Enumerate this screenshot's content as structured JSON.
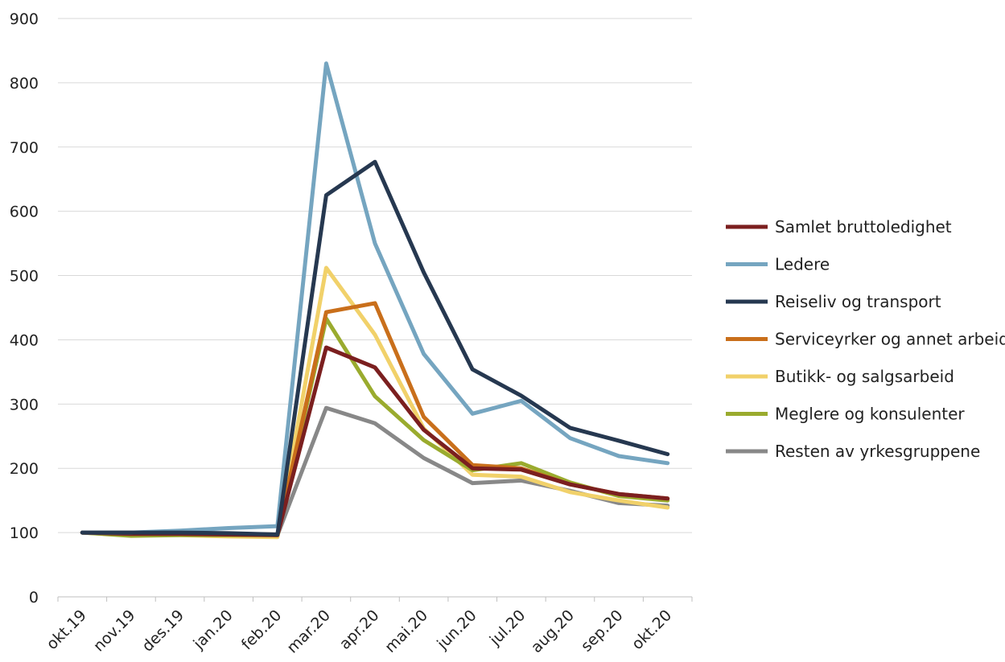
{
  "chart_data": {
    "type": "line",
    "title": "",
    "xlabel": "",
    "ylabel": "",
    "ylim": [
      0,
      900
    ],
    "yticks": [
      0,
      100,
      200,
      300,
      400,
      500,
      600,
      700,
      800,
      900
    ],
    "grid": "horizontal",
    "legend": "right",
    "categories": [
      "okt.19",
      "nov.19",
      "des.19",
      "jan.20",
      "feb.20",
      "mar.20",
      "apr.20",
      "mai.20",
      "jun.20",
      "jul.20",
      "aug.20",
      "sep.20",
      "okt.20"
    ],
    "series": [
      {
        "name": "Samlet bruttoledighet",
        "color": "#7b1f1f",
        "values": [
          100,
          98,
          98,
          97,
          96,
          388,
          357,
          260,
          200,
          198,
          175,
          160,
          153
        ]
      },
      {
        "name": "Ledere",
        "color": "#75a5c0",
        "values": [
          100,
          100,
          103,
          107,
          110,
          830,
          550,
          378,
          285,
          305,
          247,
          219,
          208
        ]
      },
      {
        "name": "Reiseliv og transport",
        "color": "#263850",
        "values": [
          100,
          100,
          100,
          99,
          97,
          625,
          677,
          505,
          354,
          313,
          263,
          243,
          222
        ]
      },
      {
        "name": "Serviceyrker og annet arbeid",
        "color": "#c96f1b",
        "values": [
          100,
          100,
          100,
          98,
          97,
          443,
          457,
          280,
          205,
          200,
          175,
          160,
          153
        ]
      },
      {
        "name": "Butikk- og salgsarbeid",
        "color": "#f1d16a",
        "values": [
          100,
          96,
          96,
          94,
          93,
          512,
          408,
          262,
          190,
          187,
          163,
          150,
          139
        ]
      },
      {
        "name": "Meglere og konsulenter",
        "color": "#9aab2e",
        "values": [
          100,
          95,
          96,
          96,
          96,
          433,
          312,
          244,
          197,
          208,
          178,
          157,
          150
        ]
      },
      {
        "name": "Resten av yrkesgruppene",
        "color": "#888888",
        "values": [
          100,
          100,
          99,
          97,
          96,
          294,
          270,
          216,
          177,
          181,
          165,
          146,
          142
        ]
      }
    ]
  }
}
